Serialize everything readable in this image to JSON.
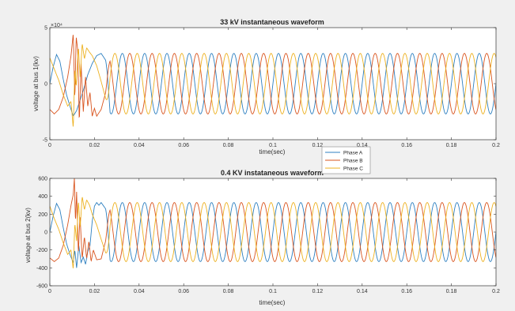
{
  "chart_data": [
    {
      "type": "line",
      "title": "33 kV instantaneous waveform",
      "xlabel": "time(sec)",
      "ylabel": "voltage at bus 1(kv)",
      "xlim": [
        0,
        0.2
      ],
      "ylim": [
        -5,
        5
      ],
      "y_multiplier_label": "×10⁴",
      "x_ticks": [
        "0",
        "0.02",
        "0.04",
        "0.06",
        "0.08",
        "0.1",
        "0.12",
        "0.14",
        "0.16",
        "0.18",
        "0.2"
      ],
      "y_ticks": [
        "-5",
        "0",
        "5"
      ],
      "frequency_hz": 100,
      "amplitude": 2.7,
      "transient_end": 0.027,
      "series": [
        {
          "name": "Phase A",
          "color": "#2c7fc0",
          "phase_deg": 0,
          "transient": [
            [
              0,
              0
            ],
            [
              0.0015,
              1.5
            ],
            [
              0.003,
              2.6
            ],
            [
              0.0045,
              2.0
            ],
            [
              0.006,
              0.4
            ],
            [
              0.0075,
              -1.0
            ],
            [
              0.009,
              -2.0
            ],
            [
              0.0105,
              -2.9
            ],
            [
              0.012,
              -2.4
            ],
            [
              0.0135,
              -1.5
            ],
            [
              0.015,
              -0.6
            ],
            [
              0.017,
              0.8
            ],
            [
              0.019,
              1.8
            ],
            [
              0.021,
              2.5
            ],
            [
              0.023,
              2.7
            ],
            [
              0.025,
              2.1
            ]
          ]
        },
        {
          "name": "Phase B",
          "color": "#d9541e",
          "phase_deg": -120,
          "transient": [
            [
              0,
              -2.3
            ],
            [
              0.002,
              -2.7
            ],
            [
              0.004,
              -2.3
            ],
            [
              0.006,
              -1.2
            ],
            [
              0.008,
              0.6
            ],
            [
              0.0095,
              2.5
            ],
            [
              0.0105,
              4.5
            ],
            [
              0.0112,
              -1.5
            ],
            [
              0.0118,
              4.2
            ],
            [
              0.0125,
              3.0
            ],
            [
              0.0132,
              -3.5
            ],
            [
              0.014,
              1.8
            ],
            [
              0.015,
              -2.5
            ],
            [
              0.016,
              0.6
            ],
            [
              0.017,
              -2.0
            ],
            [
              0.018,
              -0.8
            ],
            [
              0.019,
              -2.9
            ],
            [
              0.02,
              -2.2
            ],
            [
              0.021,
              -2.9
            ],
            [
              0.023,
              -2.3
            ],
            [
              0.025,
              -0.8
            ]
          ]
        },
        {
          "name": "Phase C",
          "color": "#edb120",
          "phase_deg": 120,
          "transient": [
            [
              0,
              2.3
            ],
            [
              0.002,
              1.3
            ],
            [
              0.004,
              0.3
            ],
            [
              0.006,
              -1.0
            ],
            [
              0.008,
              -2.0
            ],
            [
              0.0095,
              -1.6
            ],
            [
              0.0105,
              -4.0
            ],
            [
              0.0112,
              1.4
            ],
            [
              0.0118,
              -0.3
            ],
            [
              0.0128,
              3.3
            ],
            [
              0.0136,
              0.5
            ],
            [
              0.0145,
              3.6
            ],
            [
              0.0155,
              2.2
            ],
            [
              0.0165,
              3.2
            ],
            [
              0.0178,
              2.8
            ],
            [
              0.019,
              2.5
            ],
            [
              0.021,
              1.6
            ],
            [
              0.023,
              0.2
            ],
            [
              0.025,
              -1.3
            ]
          ]
        }
      ]
    },
    {
      "type": "line",
      "title": "0.4 KV instataneous waveform",
      "xlabel": "time(sec)",
      "ylabel": "voltage at bus 2(kv)",
      "xlim": [
        0,
        0.2
      ],
      "ylim": [
        -600,
        600
      ],
      "x_ticks": [
        "0",
        "0.02",
        "0.04",
        "0.06",
        "0.08",
        "0.1",
        "0.12",
        "0.14",
        "0.16",
        "0.18",
        "0.2"
      ],
      "y_ticks": [
        "-600",
        "-400",
        "-200",
        "0",
        "200",
        "400",
        "600"
      ],
      "frequency_hz": 100,
      "amplitude": 330,
      "transient_end": 0.027,
      "series": [
        {
          "name": "Phase A",
          "color": "#2c7fc0",
          "phase_deg": 0,
          "transient": [
            [
              0,
              0
            ],
            [
              0.0015,
              180
            ],
            [
              0.003,
              320
            ],
            [
              0.0045,
              250
            ],
            [
              0.006,
              50
            ],
            [
              0.0075,
              -130
            ],
            [
              0.009,
              -250
            ],
            [
              0.0105,
              -340
            ],
            [
              0.0112,
              -200
            ],
            [
              0.012,
              -400
            ],
            [
              0.013,
              -150
            ],
            [
              0.014,
              -340
            ],
            [
              0.015,
              -280
            ],
            [
              0.016,
              -360
            ],
            [
              0.017,
              -220
            ],
            [
              0.018,
              -150
            ],
            [
              0.019,
              120
            ],
            [
              0.02,
              290
            ],
            [
              0.021,
              330
            ],
            [
              0.022,
              300
            ],
            [
              0.023,
              330
            ],
            [
              0.025,
              260
            ]
          ]
        },
        {
          "name": "Phase B",
          "color": "#d9541e",
          "phase_deg": -120,
          "transient": [
            [
              0,
              -290
            ],
            [
              0.002,
              -330
            ],
            [
              0.004,
              -290
            ],
            [
              0.006,
              -150
            ],
            [
              0.008,
              80
            ],
            [
              0.0095,
              300
            ],
            [
              0.0105,
              420
            ],
            [
              0.011,
              600
            ],
            [
              0.0115,
              100
            ],
            [
              0.012,
              450
            ],
            [
              0.0128,
              -250
            ],
            [
              0.0135,
              200
            ],
            [
              0.0145,
              -300
            ],
            [
              0.0155,
              -50
            ],
            [
              0.0165,
              -300
            ],
            [
              0.0175,
              -100
            ],
            [
              0.0185,
              -330
            ],
            [
              0.0195,
              -200
            ],
            [
              0.021,
              -310
            ],
            [
              0.023,
              -300
            ],
            [
              0.025,
              -100
            ]
          ]
        },
        {
          "name": "Phase C",
          "color": "#edb120",
          "phase_deg": 120,
          "transient": [
            [
              0,
              290
            ],
            [
              0.002,
              150
            ],
            [
              0.004,
              30
            ],
            [
              0.006,
              -120
            ],
            [
              0.008,
              -250
            ],
            [
              0.0095,
              -200
            ],
            [
              0.0105,
              -420
            ],
            [
              0.0112,
              100
            ],
            [
              0.012,
              -100
            ],
            [
              0.0128,
              350
            ],
            [
              0.0136,
              50
            ],
            [
              0.0145,
              400
            ],
            [
              0.0155,
              250
            ],
            [
              0.0165,
              360
            ],
            [
              0.0178,
              300
            ],
            [
              0.019,
              200
            ],
            [
              0.021,
              80
            ],
            [
              0.023,
              -80
            ],
            [
              0.025,
              -230
            ]
          ]
        }
      ]
    }
  ],
  "legend": {
    "placement": "between-plots",
    "entries": [
      {
        "label": "Phase A",
        "color": "#2c7fc0"
      },
      {
        "label": "Phase B",
        "color": "#d9541e"
      },
      {
        "label": "Phase C",
        "color": "#edb120"
      }
    ]
  }
}
